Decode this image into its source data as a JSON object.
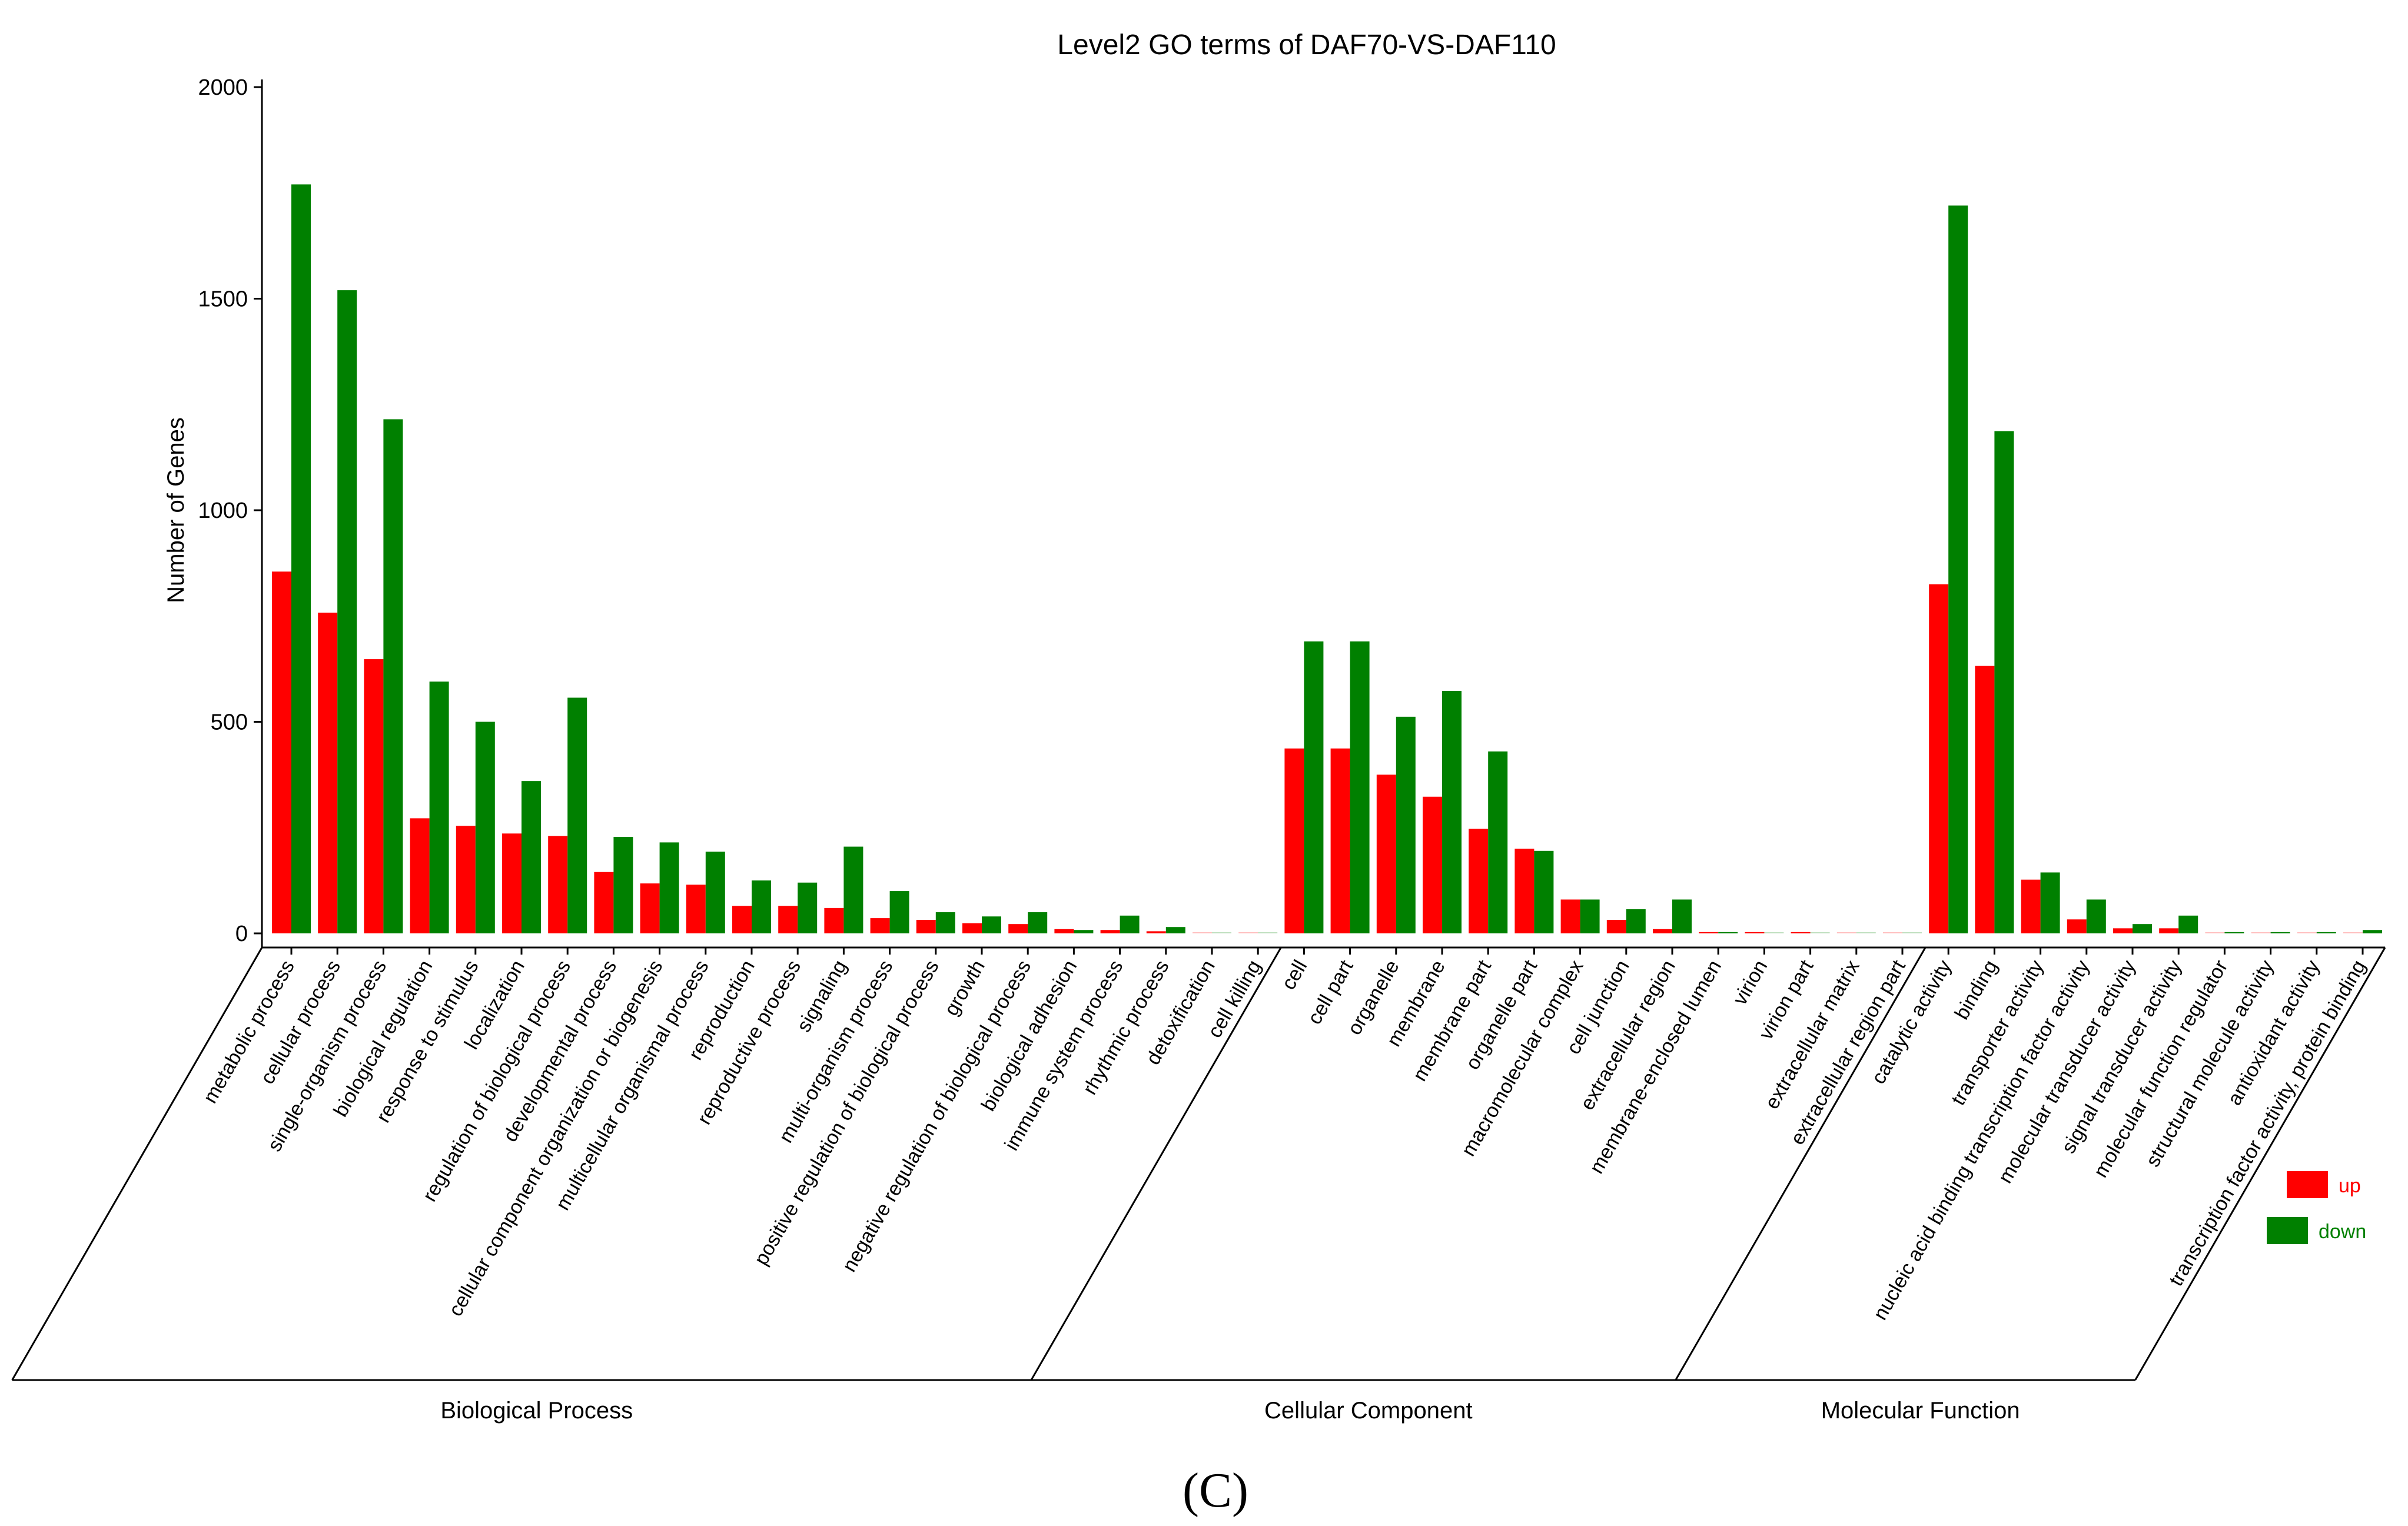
{
  "chart_data": {
    "type": "bar",
    "title": "Level2 GO terms of DAF70-VS-DAF110",
    "xlabel": "",
    "ylabel": "Number of Genes",
    "ylim": [
      0,
      2000
    ],
    "yticks": [
      0,
      500,
      1000,
      1500,
      2000
    ],
    "categories": [
      "metabolic process",
      "cellular process",
      "single-organism process",
      "biological regulation",
      "response to stimulus",
      "localization",
      "regulation of biological process",
      "developmental process",
      "cellular component organization or biogenesis",
      "multicellular organismal process",
      "reproduction",
      "reproductive process",
      "signaling",
      "multi-organism process",
      "positive regulation of biological process",
      "growth",
      "negative regulation of biological process",
      "biological adhesion",
      "immune system process",
      "rhythmic process",
      "detoxification",
      "cell killing",
      "cell",
      "cell part",
      "organelle",
      "membrane",
      "membrane part",
      "organelle part",
      "macromolecular complex",
      "cell junction",
      "extracellular region",
      "membrane-enclosed lumen",
      "virion",
      "virion part",
      "extracellular matrix",
      "extracellular region part",
      "catalytic activity",
      "binding",
      "transporter activity",
      "nucleic acid binding transcription factor activity",
      "molecular transducer activity",
      "signal transducer activity",
      "molecular function regulator",
      "structural molecule activity",
      "antioxidant activity",
      "transcription factor activity, protein binding"
    ],
    "series": [
      {
        "name": "up",
        "color": "#ff0000",
        "values": [
          855,
          758,
          648,
          272,
          254,
          236,
          230,
          145,
          118,
          115,
          65,
          65,
          60,
          36,
          32,
          24,
          22,
          10,
          8,
          5,
          0,
          0,
          437,
          437,
          375,
          323,
          247,
          200,
          80,
          32,
          10,
          3,
          3,
          3,
          0,
          0,
          825,
          632,
          127,
          33,
          12,
          12,
          0,
          0,
          0,
          0
        ]
      },
      {
        "name": "down",
        "color": "#008000",
        "values": [
          1770,
          1520,
          1215,
          595,
          500,
          360,
          557,
          228,
          215,
          193,
          125,
          120,
          205,
          100,
          50,
          40,
          50,
          8,
          42,
          15,
          0,
          0,
          690,
          690,
          512,
          573,
          430,
          195,
          80,
          57,
          80,
          3,
          0,
          0,
          0,
          0,
          1720,
          1187,
          144,
          80,
          22,
          42,
          3,
          3,
          3,
          8
        ]
      }
    ],
    "groups": [
      {
        "name": "Biological Process",
        "start": 0,
        "end": 21
      },
      {
        "name": "Cellular Component",
        "start": 22,
        "end": 35
      },
      {
        "name": "Molecular Function",
        "start": 36,
        "end": 45
      }
    ],
    "legend": {
      "position": "right",
      "entries": [
        "up",
        "down"
      ]
    }
  },
  "caption": "(C)"
}
